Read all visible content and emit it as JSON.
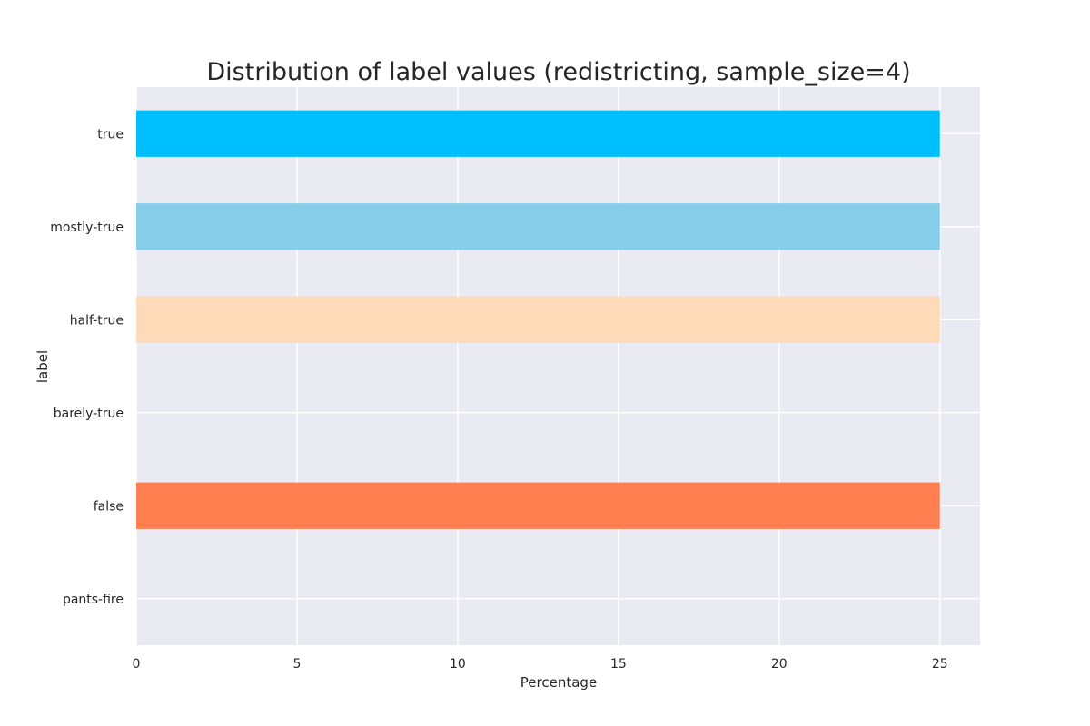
{
  "chart_data": {
    "type": "bar",
    "orientation": "horizontal",
    "title": "Distribution of label values (redistricting, sample_size=4)",
    "xlabel": "Percentage",
    "ylabel": "label",
    "categories": [
      "true",
      "mostly-true",
      "half-true",
      "barely-true",
      "false",
      "pants-fire"
    ],
    "values": [
      25,
      25,
      25,
      0,
      25,
      0
    ],
    "colors": [
      "#00bfff",
      "#87ceeb",
      "#ffdab9",
      "#ffa07a",
      "#ff7f50",
      "#ff6347"
    ],
    "xlim": [
      0,
      26.25
    ],
    "xticks": [
      0,
      5,
      10,
      15,
      20,
      25
    ],
    "grid": true,
    "legend": "none",
    "plot_background": "#eaeaf2",
    "grid_color": "#ffffff"
  }
}
